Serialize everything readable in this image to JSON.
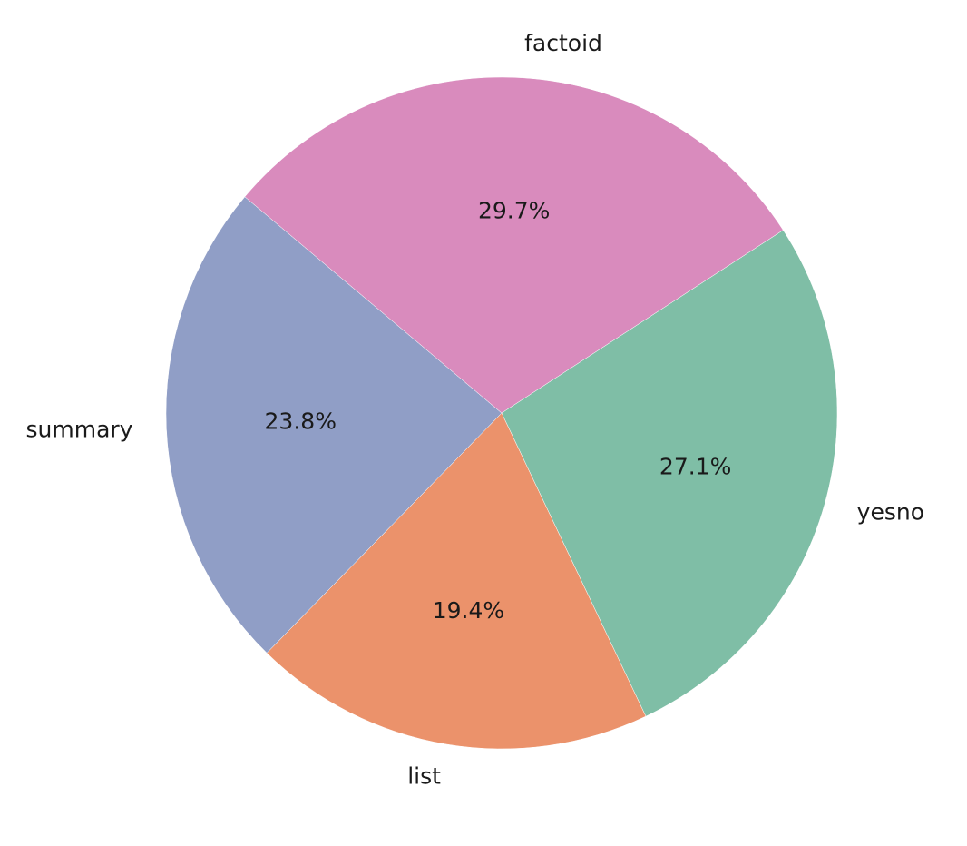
{
  "chart_data": {
    "type": "pie",
    "categories": [
      "yesno",
      "list",
      "summary",
      "factoid"
    ],
    "values": [
      27.1,
      19.4,
      23.8,
      29.7
    ],
    "value_labels": [
      "27.1%",
      "19.4%",
      "23.8%",
      "29.7%"
    ],
    "colors": [
      "#7fbea6",
      "#eb926b",
      "#909ec6",
      "#d98bbd"
    ],
    "direction": "clockwise"
  }
}
